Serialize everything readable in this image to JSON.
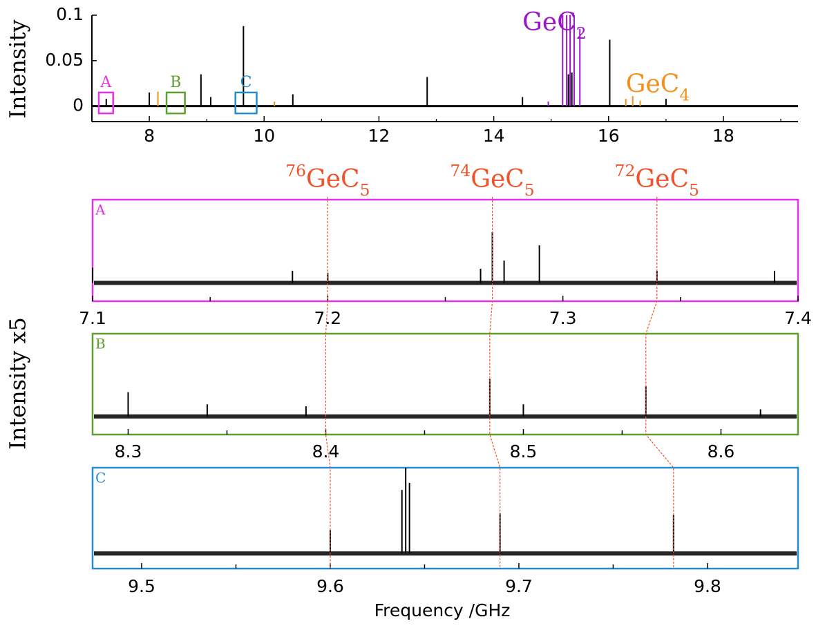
{
  "chart_data": [
    {
      "type": "stick",
      "ylabel": "Intensity",
      "xlim": [
        7.0,
        19.3
      ],
      "ylim": [
        -0.017,
        0.1
      ],
      "xticks": [
        8,
        10,
        12,
        14,
        16,
        18
      ],
      "xminor": [
        9,
        11,
        13,
        15,
        17,
        19
      ],
      "yticks": [
        0,
        0.05,
        0.1
      ],
      "series": [
        {
          "color": "#000000",
          "x": [
            7.25,
            8.0,
            8.9,
            9.07,
            9.64,
            10.5,
            12.84,
            14.5,
            15.3,
            15.36,
            16.02,
            17.0
          ],
          "values": [
            0.008,
            0.015,
            0.035,
            0.01,
            0.088,
            0.013,
            0.032,
            0.01,
            0.035,
            0.037,
            0.073,
            0.008
          ]
        },
        {
          "color": "#9a14c8",
          "x": [
            14.95,
            15.2,
            15.27,
            15.33,
            15.4,
            15.5
          ],
          "values": [
            0.005,
            0.1,
            0.1,
            0.1,
            0.1,
            0.085
          ]
        },
        {
          "color": "#f39019",
          "x": [
            8.15,
            10.18,
            16.3,
            16.42,
            16.55
          ],
          "values": [
            0.016,
            0.005,
            0.008,
            0.011,
            0.006
          ]
        }
      ],
      "annotations": [
        {
          "text": "GeC",
          "sub": "2",
          "color": "#9a14c8",
          "x": 14.5,
          "y": 0.09
        },
        {
          "text": "GeC",
          "sub": "4",
          "color": "#f39019",
          "x": 16.3,
          "y": 0.022
        }
      ],
      "boxes": [
        {
          "label": "A",
          "color": "#e632e6",
          "xlim": [
            7.12,
            7.37
          ],
          "ylim": [
            -0.008,
            0.015
          ]
        },
        {
          "label": "B",
          "color": "#5e9e2e",
          "xlim": [
            8.3,
            8.62
          ],
          "ylim": [
            -0.008,
            0.015
          ]
        },
        {
          "label": "C",
          "color": "#238ccc",
          "xlim": [
            9.5,
            9.87
          ],
          "ylim": [
            -0.008,
            0.015
          ]
        }
      ]
    },
    {
      "type": "stick",
      "label": "A",
      "color": "#e632e6",
      "xlim": [
        7.1,
        7.4
      ],
      "ylim": [
        0,
        1
      ],
      "baseline": 0.18,
      "xticks": [
        7.1,
        7.2,
        7.3,
        7.4
      ],
      "xminor": [
        7.15,
        7.25,
        7.35
      ],
      "x": [
        7.1,
        7.185,
        7.2,
        7.265,
        7.27,
        7.275,
        7.29,
        7.34,
        7.39
      ],
      "values": [
        0.33,
        0.3,
        0.28,
        0.32,
        0.68,
        0.4,
        0.55,
        0.3,
        0.3
      ]
    },
    {
      "type": "stick",
      "label": "B",
      "color": "#5e9e2e",
      "xlim": [
        8.282,
        8.639
      ],
      "ylim": [
        0,
        1
      ],
      "baseline": 0.18,
      "xticks": [
        8.3,
        8.4,
        8.5,
        8.6
      ],
      "xminor": [
        8.35,
        8.45,
        8.55
      ],
      "x": [
        8.3,
        8.34,
        8.39,
        8.483,
        8.5,
        8.562,
        8.62
      ],
      "values": [
        0.42,
        0.3,
        0.28,
        0.55,
        0.3,
        0.48,
        0.25
      ]
    },
    {
      "type": "stick",
      "label": "C",
      "color": "#238ccc",
      "xlim": [
        9.474,
        9.848
      ],
      "ylim": [
        0,
        1
      ],
      "baseline": 0.15,
      "xticks": [
        9.5,
        9.6,
        9.7,
        9.8
      ],
      "xminor": [
        9.55,
        9.65,
        9.75
      ],
      "x": [
        9.6,
        9.638,
        9.64,
        9.642,
        9.69,
        9.782
      ],
      "values": [
        0.38,
        0.78,
        1.0,
        0.85,
        0.55,
        0.53
      ]
    }
  ],
  "isotopes": [
    {
      "mass": "76",
      "text": "GeC",
      "sub": "5",
      "color": "#f0522a",
      "x": [
        7.2,
        8.4,
        9.6
      ]
    },
    {
      "mass": "74",
      "text": "GeC",
      "sub": "5",
      "color": "#f0522a",
      "x": [
        7.27,
        8.483,
        9.69
      ]
    },
    {
      "mass": "72",
      "text": "GeC",
      "sub": "5",
      "color": "#f0522a",
      "x": [
        7.34,
        8.562,
        9.782
      ]
    }
  ],
  "ylabel": "Intensity x5",
  "xlabel": "Frequency /GHz"
}
